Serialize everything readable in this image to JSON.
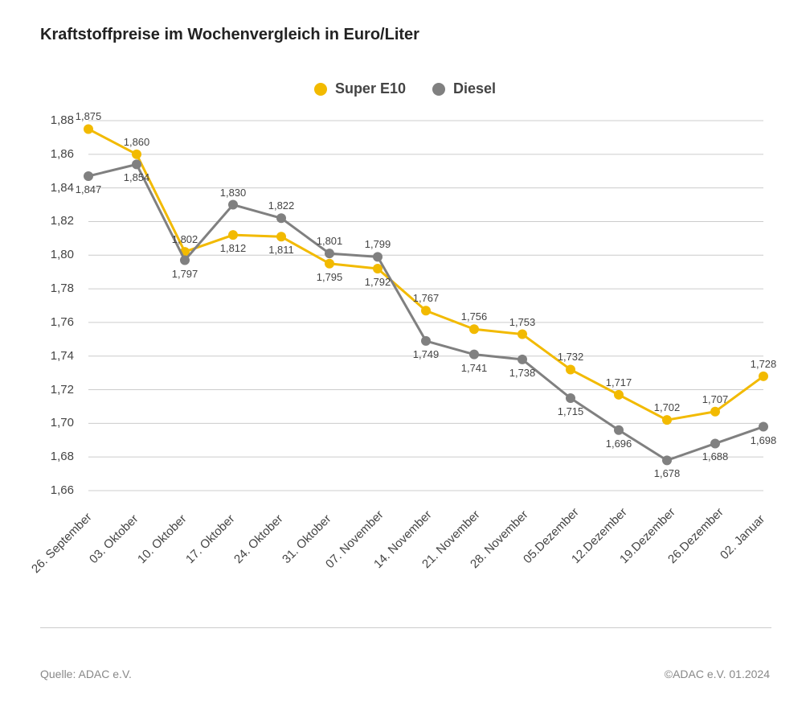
{
  "chart": {
    "type": "line",
    "title": "Kraftstoffpreise im Wochenvergleich in Euro/Liter",
    "background_color": "#ffffff",
    "grid_color": "#cccccc",
    "text_color": "#444444",
    "title_fontweight": 700,
    "title_fontsize": 20,
    "axis_fontsize": 15,
    "datalabel_fontsize": 13,
    "ymin": 1.66,
    "ymax": 1.88,
    "ytick_step": 0.02,
    "ytick_labels": [
      "1,66",
      "1,68",
      "1,70",
      "1,72",
      "1,74",
      "1,76",
      "1,78",
      "1,80",
      "1,82",
      "1,84",
      "1,86",
      "1,88"
    ],
    "categories": [
      "26. September",
      "03. Oktober",
      "10. Oktober",
      "17. Oktober",
      "24. Oktober",
      "31. Oktober",
      "07. November",
      "14. November",
      "21. November",
      "28. November",
      "05.Dezember",
      "12.Dezember",
      "19.Dezember",
      "26.Dezember",
      "02. Januar"
    ],
    "series": [
      {
        "name": "Super E10",
        "color": "#f2ba00",
        "line_width": 3,
        "marker_size": 6,
        "values": [
          1.875,
          1.86,
          1.802,
          1.812,
          1.811,
          1.795,
          1.792,
          1.767,
          1.756,
          1.753,
          1.732,
          1.717,
          1.702,
          1.707,
          1.728
        ],
        "labels": [
          "1,875",
          "1,860",
          "1,802",
          "1,812",
          "1,811",
          "1,795",
          "1,792",
          "1,767",
          "1,756",
          "1,753",
          "1,732",
          "1,717",
          "1,702",
          "1,707",
          "1,728"
        ]
      },
      {
        "name": "Diesel",
        "color": "#808080",
        "line_width": 3,
        "marker_size": 6,
        "values": [
          1.847,
          1.854,
          1.797,
          1.83,
          1.822,
          1.801,
          1.799,
          1.749,
          1.741,
          1.738,
          1.715,
          1.696,
          1.678,
          1.688,
          1.698
        ],
        "labels": [
          "1,847",
          "1,854",
          "1,797",
          "1,830",
          "1,822",
          "1,801",
          "1,799",
          "1,749",
          "1,741",
          "1,738",
          "1,715",
          "1,696",
          "1,678",
          "1,688",
          "1,698"
        ]
      }
    ],
    "legend_position": "top-center",
    "xlabel_rotation_deg": -45
  },
  "footer": {
    "source": "Quelle: ADAC e.V.",
    "copyright": "©ADAC e.V. 01.2024"
  }
}
